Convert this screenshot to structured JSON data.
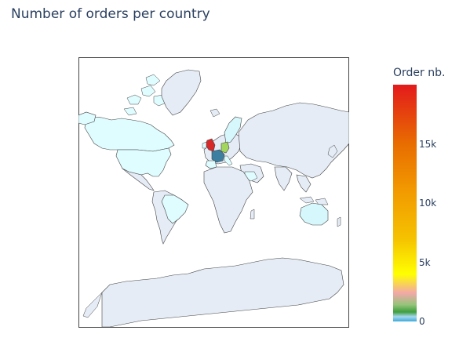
{
  "title": "Number of orders per country",
  "colorbar": {
    "title": "Order nb.",
    "ticks": [
      {
        "label": "15k",
        "value": 15000
      },
      {
        "label": "10k",
        "value": 10000
      },
      {
        "label": "5k",
        "value": 5000
      },
      {
        "label": "0",
        "value": 0
      }
    ],
    "max": 20000,
    "colorscale": [
      "#3ba9d9",
      "#a6d8f0",
      "#3d9e3d",
      "#94c47a",
      "#f2a8a8",
      "#ffff00",
      "#f5c200",
      "#f29a00",
      "#e86d00",
      "#e31a1c"
    ]
  },
  "colors": {
    "land": "#e5ecf6",
    "border": "#444444",
    "low": "#dffcff",
    "uk": "#d7292a",
    "germany": "#a3d65c",
    "france": "#3c7fa0",
    "scandinavia": "#d6f7fb"
  }
}
